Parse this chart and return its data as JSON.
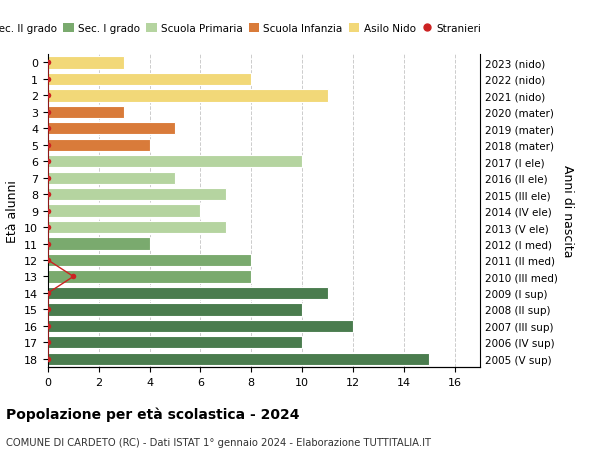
{
  "ages": [
    18,
    17,
    16,
    15,
    14,
    13,
    12,
    11,
    10,
    9,
    8,
    7,
    6,
    5,
    4,
    3,
    2,
    1,
    0
  ],
  "right_labels": [
    "2005 (V sup)",
    "2006 (IV sup)",
    "2007 (III sup)",
    "2008 (II sup)",
    "2009 (I sup)",
    "2010 (III med)",
    "2011 (II med)",
    "2012 (I med)",
    "2013 (V ele)",
    "2014 (IV ele)",
    "2015 (III ele)",
    "2016 (II ele)",
    "2017 (I ele)",
    "2018 (mater)",
    "2019 (mater)",
    "2020 (mater)",
    "2021 (nido)",
    "2022 (nido)",
    "2023 (nido)"
  ],
  "bar_values": [
    15,
    10,
    12,
    10,
    11,
    8,
    8,
    4,
    7,
    6,
    7,
    5,
    10,
    4,
    5,
    3,
    11,
    8,
    3
  ],
  "bar_colors": [
    "#4a7c4e",
    "#4a7c4e",
    "#4a7c4e",
    "#4a7c4e",
    "#4a7c4e",
    "#7aaa6e",
    "#7aaa6e",
    "#7aaa6e",
    "#b5d4a0",
    "#b5d4a0",
    "#b5d4a0",
    "#b5d4a0",
    "#b5d4a0",
    "#d97b3a",
    "#d97b3a",
    "#d97b3a",
    "#f2d878",
    "#f2d878",
    "#f2d878"
  ],
  "stranieri_x": [
    0,
    0,
    0,
    0,
    0,
    1,
    0,
    0,
    0,
    0,
    0,
    0,
    0,
    0,
    0,
    0,
    0,
    0,
    0
  ],
  "stranieri_color": "#cc2222",
  "legend_labels": [
    "Sec. II grado",
    "Sec. I grado",
    "Scuola Primaria",
    "Scuola Infanzia",
    "Asilo Nido",
    "Stranieri"
  ],
  "legend_colors": [
    "#4a7c4e",
    "#7aaa6e",
    "#b5d4a0",
    "#d97b3a",
    "#f2d878",
    "#cc2222"
  ],
  "ylabel": "Età alunni",
  "right_ylabel": "Anni di nascita",
  "title": "Popolazione per età scolastica - 2024",
  "subtitle": "COMUNE DI CARDETO (RC) - Dati ISTAT 1° gennaio 2024 - Elaborazione TUTTITALIA.IT",
  "xlim": [
    0,
    17
  ],
  "xticks": [
    0,
    2,
    4,
    6,
    8,
    10,
    12,
    14,
    16
  ],
  "bg_color": "#ffffff",
  "grid_color": "#cccccc"
}
